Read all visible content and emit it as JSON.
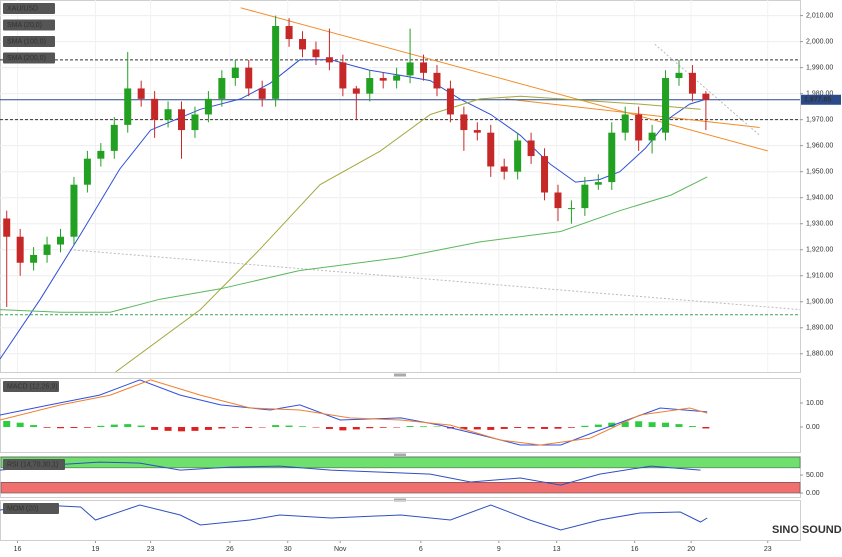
{
  "chart_data": [
    {
      "type": "candlestick",
      "title": "XAU/USD",
      "xlim": [
        -0.5,
        59
      ],
      "xticks": [
        {
          "value": 0.8,
          "label": "16"
        },
        {
          "value": 6.6,
          "label": "19"
        },
        {
          "value": 10.7,
          "label": "23"
        },
        {
          "value": 16.6,
          "label": "26"
        },
        {
          "value": 20.9,
          "label": "30"
        },
        {
          "value": 24.8,
          "label": "Nov"
        },
        {
          "value": 30.8,
          "label": "6"
        },
        {
          "value": 36.6,
          "label": "9"
        },
        {
          "value": 40.9,
          "label": "13"
        },
        {
          "value": 46.7,
          "label": "16"
        },
        {
          "value": 50.9,
          "label": "20"
        },
        {
          "value": 56.6,
          "label": "23"
        }
      ],
      "ylim": [
        1873,
        2016
      ],
      "yticks": [
        {
          "value": 2010,
          "label": "2,010.00"
        },
        {
          "value": 2000,
          "label": "2,000.00"
        },
        {
          "value": 1990,
          "label": "1,990.00"
        },
        {
          "value": 1980,
          "label": "1,980.00"
        },
        {
          "value": 1970,
          "label": "1,970.00"
        },
        {
          "value": 1960,
          "label": "1,960.00"
        },
        {
          "value": 1950,
          "label": "1,950.00"
        },
        {
          "value": 1940,
          "label": "1,940.00"
        },
        {
          "value": 1930,
          "label": "1,930.00"
        },
        {
          "value": 1920,
          "label": "1,920.00"
        },
        {
          "value": 1910,
          "label": "1,910.00"
        },
        {
          "value": 1900,
          "label": "1,900.00"
        },
        {
          "value": 1890,
          "label": "1,890.00"
        },
        {
          "value": 1880,
          "label": "1,880.00"
        }
      ],
      "grid": true,
      "up_color": "#22a022",
      "down_color": "#c62828",
      "open": [
        1932,
        1925,
        1915,
        1918,
        1922,
        1925,
        1945,
        1955,
        1958,
        1968,
        1982,
        1978,
        1970,
        1974,
        1966,
        1972,
        1978,
        1986,
        1990,
        1982,
        1978,
        2006,
        2001,
        1997,
        1994,
        1992,
        1982,
        1980,
        1986,
        1985,
        1987,
        1992,
        1988,
        1982,
        1972,
        1966,
        1965,
        1952,
        1950,
        1962,
        1956,
        1942,
        1936,
        1936,
        1945,
        1946,
        1965,
        1972,
        1962,
        1965,
        1986,
        1988,
        1980
      ],
      "high": [
        1935,
        1928,
        1921,
        1925,
        1928,
        1948,
        1958,
        1961,
        1971,
        1996,
        1985,
        1981,
        1977,
        1977,
        1975,
        1981,
        1989,
        1993,
        1993,
        1985,
        2010,
        2009,
        2004,
        2000,
        2005,
        1995,
        1983,
        1989,
        1988,
        1990,
        2005,
        1995,
        1991,
        1985,
        1975,
        1969,
        1968,
        1955,
        1965,
        1965,
        1959,
        1945,
        1939,
        1948,
        1949,
        1969,
        1975,
        1975,
        1968,
        1989,
        1993,
        1991,
        1981
      ],
      "low": [
        1898,
        1910,
        1912,
        1915,
        1919,
        1922,
        1942,
        1952,
        1955,
        1965,
        1975,
        1963,
        1967,
        1955,
        1963,
        1969,
        1975,
        1983,
        1979,
        1975,
        1975,
        1998,
        1994,
        1991,
        1989,
        1979,
        1970,
        1977,
        1982,
        1982,
        1984,
        1985,
        1979,
        1969,
        1958,
        1962,
        1948,
        1947,
        1947,
        1953,
        1939,
        1931,
        1930,
        1933,
        1943,
        1943,
        1962,
        1958,
        1957,
        1962,
        1983,
        1977,
        1966
      ],
      "close": [
        1925,
        1915,
        1918,
        1922,
        1925,
        1945,
        1955,
        1958,
        1968,
        1982,
        1978,
        1970,
        1974,
        1966,
        1972,
        1978,
        1986,
        1990,
        1982,
        1978,
        2006,
        2001,
        1997,
        1994,
        1992,
        1982,
        1980,
        1986,
        1985,
        1987,
        1992,
        1988,
        1982,
        1972,
        1966,
        1965,
        1952,
        1950,
        1962,
        1956,
        1942,
        1936,
        1936,
        1945,
        1946,
        1965,
        1972,
        1962,
        1965,
        1986,
        1988,
        1980,
        1977.65
      ],
      "series": [
        {
          "name": "SMA (20,0)",
          "color": "#2f4fd8",
          "x": [
            -0.5,
            2.5,
            5.5,
            8.4,
            10.7,
            14.4,
            17.4,
            19.6,
            21.8,
            24.1,
            27.0,
            29.3,
            31.5,
            33.7,
            36.0,
            38.2,
            40.4,
            42.3,
            44.1,
            45.6,
            47.5,
            49.4,
            50.8,
            52.1
          ],
          "values": [
            1878,
            1901,
            1926,
            1951,
            1966,
            1974,
            1978,
            1984,
            1993,
            1993,
            1989,
            1987,
            1985,
            1978,
            1972,
            1964,
            1953,
            1946,
            1947,
            1950,
            1959,
            1971,
            1976,
            1978
          ]
        },
        {
          "name": "SMA (100,0)",
          "color": "#a3a83c",
          "x": [
            8.1,
            14.4,
            18.8,
            23.3,
            27.8,
            31.5,
            35.2,
            38.2,
            41.2,
            44.1,
            47.1,
            51.6
          ],
          "values": [
            1873,
            1897,
            1920,
            1945,
            1958,
            1972,
            1978,
            1979,
            1978,
            1977,
            1976,
            1974
          ]
        },
        {
          "name": "SMA (200,0)",
          "color": "#5cb85c",
          "x": [
            -0.5,
            4.0,
            7.7,
            11.4,
            15.9,
            21.8,
            29.3,
            35.2,
            41.2,
            45.6,
            49.4,
            52.1
          ],
          "values": [
            1897,
            1896,
            1896,
            1901,
            1905,
            1912,
            1917,
            1923,
            1927,
            1935,
            1941,
            1948
          ]
        }
      ],
      "trendlines": [
        {
          "color": "#f28c28",
          "x": [
            17.4,
            56.6
          ],
          "values": [
            2013,
            1958
          ]
        },
        {
          "color": "#f28c28",
          "x": [
            37.1,
            56.0
          ],
          "values": [
            1978,
            1967
          ]
        },
        {
          "color": "#bbbbbb",
          "x": [
            4.7,
            59
          ],
          "values": [
            1920,
            1897
          ]
        },
        {
          "color": "#bbbbbb",
          "x": [
            48.2,
            56.0
          ],
          "values": [
            1999,
            1964
          ]
        }
      ],
      "levels": [
        {
          "value": 1993,
          "color": "#333333"
        },
        {
          "value": 1970,
          "color": "#333333"
        },
        {
          "value": 1895,
          "color": "#3aa55a"
        }
      ],
      "current_price": {
        "value": 1977.65,
        "label": "1,977.65",
        "color": "#2a4a8a"
      }
    },
    {
      "type": "macd",
      "title": "MACD (12,26,9)",
      "ylim": [
        -10.4,
        20.4
      ],
      "yticks": [
        {
          "value": 10,
          "label": "10.00"
        },
        {
          "value": 0,
          "label": "0.00"
        }
      ],
      "up_color": "#2ecc40",
      "down_color": "#e02020",
      "histogram": [
        2.5,
        1.8,
        0.8,
        -0.3,
        -0.5,
        -0.4,
        -0.3,
        0.5,
        1,
        1.2,
        0.6,
        -1.2,
        -1.6,
        -1.8,
        -1.6,
        -1.2,
        -0.6,
        -0.3,
        -0.4,
        -0.2,
        0.8,
        0.6,
        0.3,
        -0.2,
        -0.8,
        -1.4,
        -1,
        -0.5,
        -0.3,
        -0.2,
        0.4,
        0.3,
        0.2,
        -0.6,
        -0.9,
        -1,
        -1.2,
        -0.8,
        -0.4,
        -0.6,
        -0.8,
        -0.7,
        -0.3,
        0.5,
        1,
        1.8,
        2.2,
        2.4,
        2,
        1.8,
        1.2,
        0.4,
        -0.6
      ],
      "series": [
        {
          "color": "#3050e0",
          "x": [
            -0.5,
            3.2,
            6.9,
            9.9,
            12.9,
            15.9,
            19.6,
            21.8,
            24.8,
            29.3,
            32.2,
            35.2,
            38.2,
            41.2,
            44.1,
            48.6,
            52.1
          ],
          "values": [
            5,
            9.2,
            13.3,
            19.6,
            13.3,
            9.2,
            7.1,
            9.2,
            2.9,
            3.8,
            0.8,
            -3.3,
            -7.5,
            -7.5,
            -1.3,
            7.9,
            6.3
          ]
        },
        {
          "color": "#f08030",
          "x": [
            -0.5,
            4.0,
            7.7,
            10.7,
            14.4,
            18.1,
            21.8,
            25.5,
            29.3,
            33.0,
            36.7,
            39.7,
            43.4,
            47.1,
            50.8,
            52.1
          ],
          "values": [
            2.9,
            9.2,
            13.3,
            19.6,
            13.3,
            7.9,
            7.1,
            3.8,
            2.9,
            0.8,
            -5.4,
            -7.5,
            -4.6,
            5,
            7.9,
            5.8
          ]
        }
      ]
    },
    {
      "type": "rsi",
      "title": "RSI (14,70,30,1)",
      "ylim": [
        -11,
        103
      ],
      "yticks": [
        {
          "value": 50,
          "label": "50.00"
        },
        {
          "value": 0,
          "label": "0.00"
        }
      ],
      "bands": [
        {
          "from": 70,
          "to": 100,
          "color": "#6ee06e"
        },
        {
          "from": 0,
          "to": 30,
          "color": "#f07070"
        }
      ],
      "series": [
        {
          "color": "#3050c0",
          "x": [
            -0.5,
            3.2,
            6.9,
            9.9,
            12.9,
            16.6,
            20.3,
            24.1,
            27.8,
            31.5,
            34.5,
            38.2,
            41.2,
            44.1,
            47.9,
            51.6
          ],
          "values": [
            63.9,
            77.8,
            86.1,
            83.3,
            63.9,
            72.2,
            75,
            63.9,
            58.3,
            52.8,
            30.6,
            41.7,
            22.2,
            52.8,
            75,
            63.9
          ]
        }
      ]
    },
    {
      "type": "line",
      "title": "MOM (20)",
      "ylim": [
        -40,
        40
      ],
      "series": [
        {
          "color": "#3050c0",
          "x": [
            -0.5,
            2.5,
            5.5,
            6.6,
            9.9,
            12.9,
            14.4,
            18.1,
            20.3,
            24.1,
            29.3,
            33.0,
            36.0,
            38.9,
            41.2,
            44.1,
            47.1,
            50.1,
            51.6,
            52.1
          ],
          "values": [
            20,
            30,
            26,
            0,
            30,
            10,
            -10,
            0,
            10,
            4,
            10,
            0,
            30,
            0,
            -20,
            0,
            14,
            16,
            -4,
            4
          ]
        }
      ]
    }
  ],
  "watermark": "SINO SOUND"
}
